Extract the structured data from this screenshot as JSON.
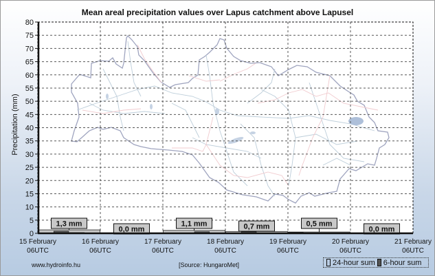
{
  "chart_data": {
    "type": "bar",
    "title": "Mean areal precipitation values over Lapus catchment above Lapusel",
    "xlabel": "",
    "ylabel": "Precipitation (mm)",
    "ylim": [
      0,
      80
    ],
    "yticks": [
      "0",
      "5",
      "10",
      "15",
      "20",
      "25",
      "30",
      "35",
      "40",
      "45",
      "50",
      "55",
      "60",
      "65",
      "70",
      "75",
      "80"
    ],
    "x_tick_labels": [
      {
        "day": "15 February",
        "time": "06UTC"
      },
      {
        "day": "16 February",
        "time": "06UTC"
      },
      {
        "day": "17 February",
        "time": "06UTC"
      },
      {
        "day": "18 February",
        "time": "06UTC"
      },
      {
        "day": "19 February",
        "time": "06UTC"
      },
      {
        "day": "20 February",
        "time": "06UTC"
      },
      {
        "day": "21 February",
        "time": "06UTC"
      }
    ],
    "grid": true,
    "series": [
      {
        "name": "24-hour sum",
        "values": [
          1.3,
          0.0,
          1.1,
          0.7,
          0.5,
          0.0
        ],
        "color": "#c8c8c8"
      },
      {
        "name": "6-hour sum",
        "values": [
          0.1,
          0.8,
          0.3,
          0.1,
          0.0,
          0.0,
          0.0,
          0.0,
          0.2,
          0.2,
          0.6,
          0.1,
          0.0,
          0.6,
          0.1,
          0.0,
          0.4,
          0.1,
          0.0,
          0.0,
          0.0,
          0.0,
          0.0,
          0.0
        ],
        "color": "#555555"
      }
    ],
    "data_labels": [
      "1,3 mm",
      "0,0 mm",
      "1,1 mm",
      "0,7 mm",
      "0,5 mm",
      "0,0 mm"
    ],
    "legend_position": "bottom-right"
  },
  "footer": {
    "website": "www.hydroinfo.hu",
    "source": "[Source: HungaroMet]"
  },
  "legend": {
    "item_24h": "24-hour sum",
    "item_6h": "6-hour sum"
  },
  "colors": {
    "map_outline": "#9aa0bc",
    "map_rivers": "#b9cbd8",
    "map_roads": "#f0c8cc",
    "map_lakes": "#a9bcd8"
  }
}
